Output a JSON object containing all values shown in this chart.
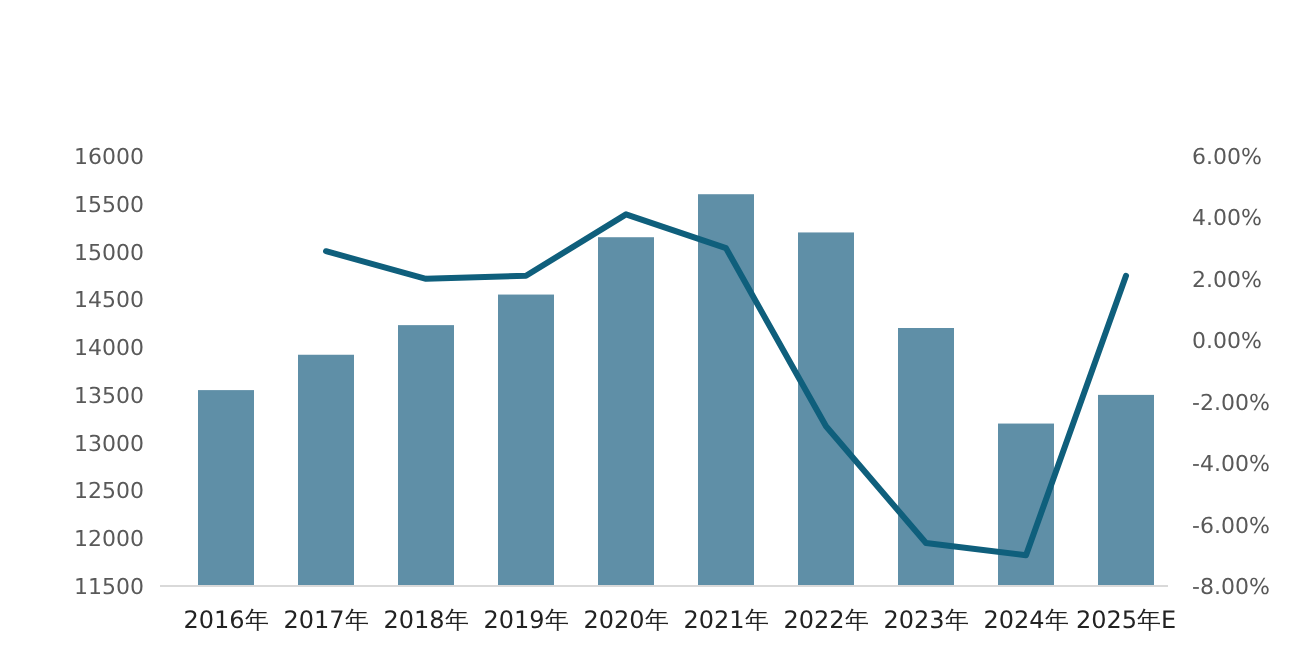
{
  "chart_data": {
    "type": "bar",
    "categories": [
      "2016年",
      "2017年",
      "2018年",
      "2019年",
      "2020年",
      "2021年",
      "2022年",
      "2023年",
      "2024年",
      "2025年E"
    ],
    "series": [
      {
        "color": "#5f8fa7",
        "values": [
          13550,
          13920,
          14230,
          14550,
          15150,
          15600,
          15200,
          14200,
          13200,
          13500
        ]
      },
      {
        "type": "line",
        "axis": "y2",
        "color": "#0f5f7c",
        "values": [
          null,
          2.9,
          2.0,
          2.1,
          4.1,
          3.0,
          -2.8,
          -6.6,
          -7.0,
          2.1
        ]
      }
    ],
    "ylim": [
      11500,
      16000
    ],
    "yticks": [
      11500,
      12000,
      12500,
      13000,
      13500,
      14000,
      14500,
      15000,
      15500,
      16000
    ],
    "y2lim": [
      -8,
      6
    ],
    "y2ticks": [
      {
        "value": -8,
        "label": "-8.00%"
      },
      {
        "value": -6,
        "label": "-6.00%"
      },
      {
        "value": -4,
        "label": "-4.00%"
      },
      {
        "value": -2,
        "label": "-2.00%"
      },
      {
        "value": 0,
        "label": "0.00%"
      },
      {
        "value": 2,
        "label": "2.00%"
      },
      {
        "value": 4,
        "label": "4.00%"
      },
      {
        "value": 6,
        "label": "6.00%"
      }
    ],
    "grid": false
  }
}
